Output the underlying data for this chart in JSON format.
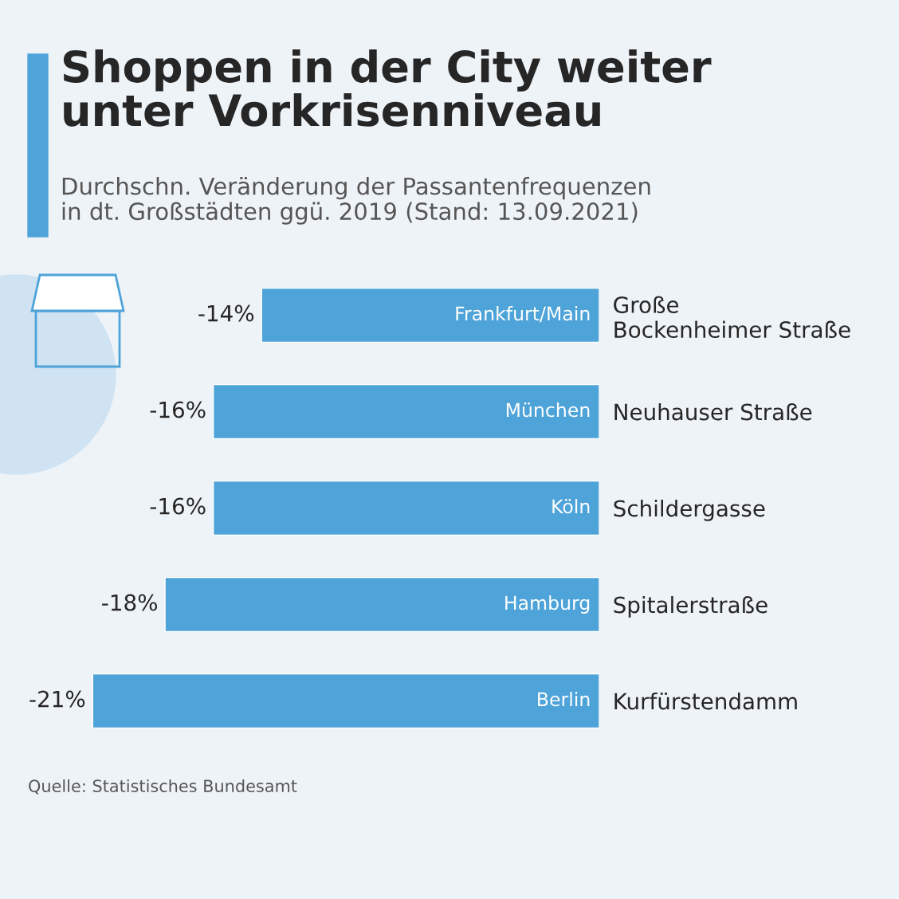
{
  "chart_data": {
    "type": "bar",
    "orientation": "horizontal",
    "title": "Shoppen in der City weiter\nunter Vorkrisenniveau",
    "subtitle": "Durchschn. Veränderung der Passantenfrequenzen\nin dt. Großstädten ggü. 2019 (Stand: 13.09.2021)",
    "categories": [
      "Große\nBockenheimer Straße",
      "Neuhauser Straße",
      "Schildergasse",
      "Spitalerstraße",
      "Kurfürstendamm"
    ],
    "values": [
      -14,
      -16,
      -16,
      -18,
      -21
    ],
    "value_labels": [
      "-14%",
      "-16%",
      "-16%",
      "-18%",
      "-21%"
    ],
    "color": "#4ea3d9",
    "annotations": [
      "Frankfurt/Main",
      "München",
      "Köln",
      "Hamburg",
      "Berlin",
      "Quelle: Statistisches Bundesamt"
    ]
  }
}
